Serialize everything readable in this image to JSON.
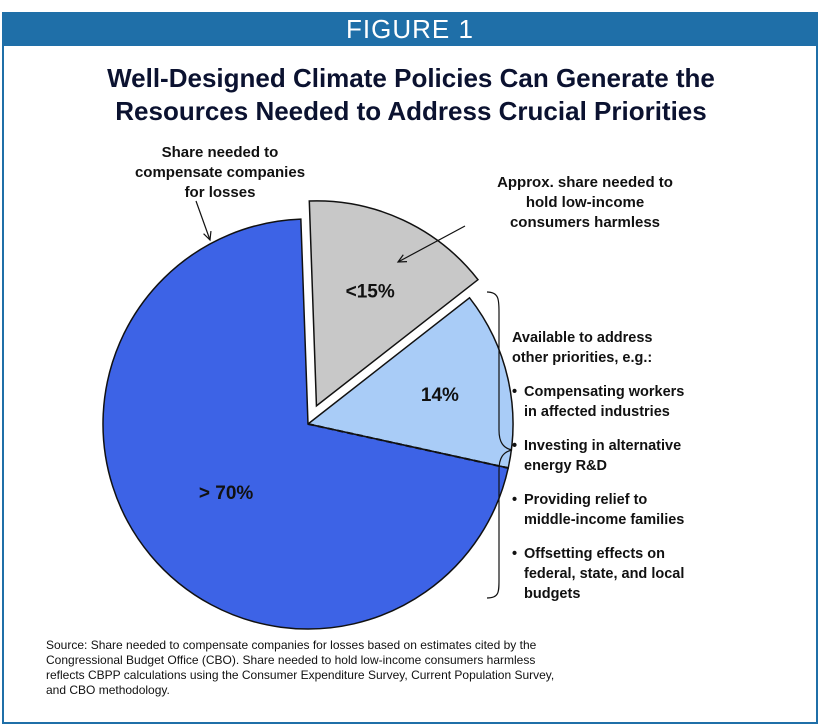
{
  "banner": {
    "label": "FIGURE 1"
  },
  "title_lines": [
    "Well-Designed Climate Policies Can Generate the",
    "Resources Needed to Address Crucial Priorities"
  ],
  "chart_data": {
    "type": "pie",
    "title": "Well-Designed Climate Policies Can Generate the Resources Needed to Address Crucial Priorities",
    "slices": [
      {
        "label": "<15%",
        "value": 15,
        "color": "#c8c8c8",
        "exploded": true
      },
      {
        "label": "14%",
        "value": 14,
        "color": "#a9ccf7",
        "exploded": false
      },
      {
        "label": "> 70%",
        "value": 71,
        "color": "#3d63e6",
        "exploded": false
      }
    ],
    "annotations": {
      "companies": [
        "Share needed to",
        "compensate companies",
        "for losses"
      ],
      "low_income": [
        "Approx. share needed to",
        "hold low-income",
        "consumers harmless"
      ]
    },
    "other_priorities": {
      "heading": [
        "Available to address",
        "other priorities, e.g.:"
      ],
      "bullets": [
        [
          "Compensating workers",
          "in affected industries"
        ],
        [
          "Investing in alternative",
          "energy R&D"
        ],
        [
          "Providing relief to",
          "middle-income families"
        ],
        [
          "Offsetting effects on",
          "federal, state, and local",
          "budgets"
        ]
      ]
    }
  },
  "source_lines": [
    "Source: Share needed to compensate companies for losses based on estimates cited by the",
    "Congressional Budget Office (CBO).  Share needed to hold low-income consumers harmless",
    "reflects CBPP calculations using the Consumer Expenditure Survey, Current Population Survey,",
    "and CBO methodology."
  ],
  "colors": {
    "banner": "#1f6fa8",
    "pie_outline": "#111111"
  }
}
